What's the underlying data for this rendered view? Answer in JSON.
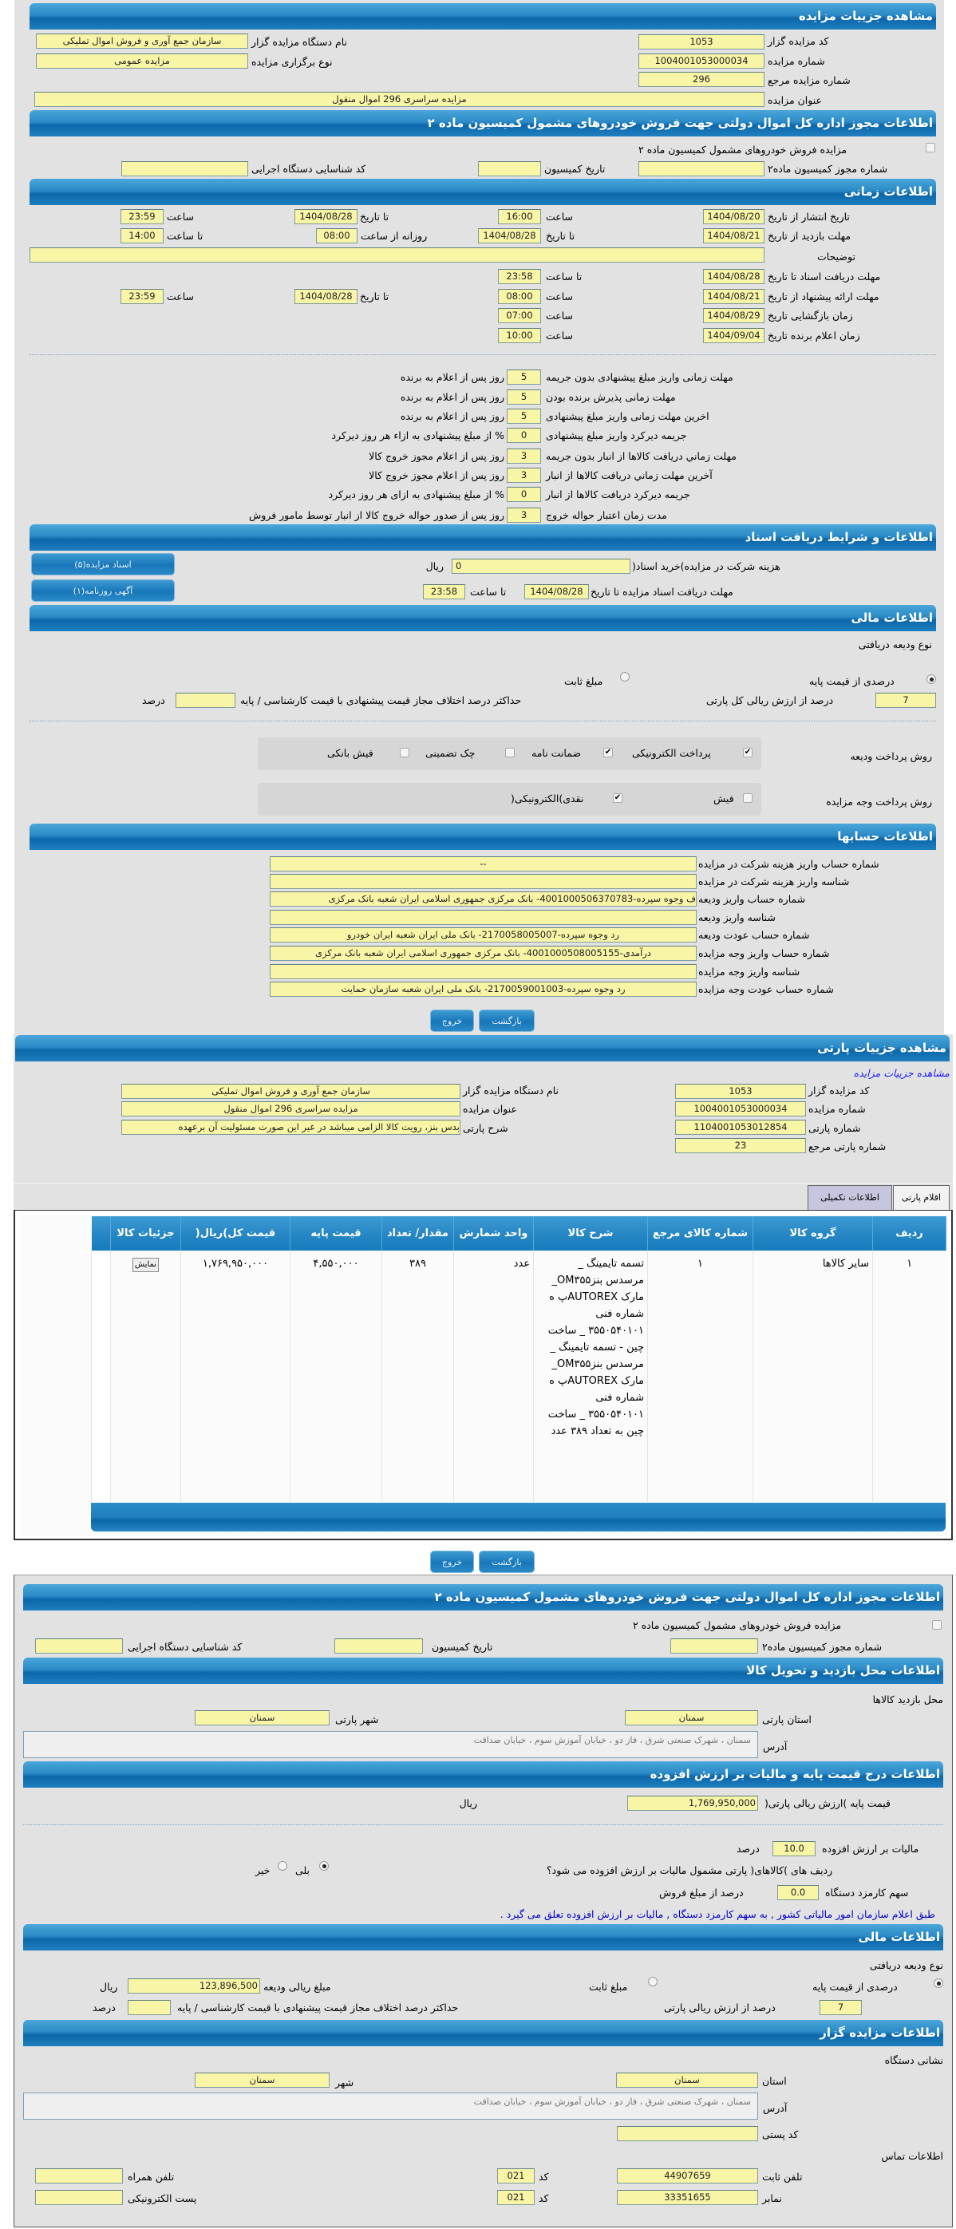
{
  "auction": {
    "header": "مشاهده جزیيات مزایده",
    "code_label": "کد مزایده گزار",
    "code": "1053",
    "number_label": "شماره مزایده",
    "number": "1004001053000034",
    "ref_label": "شماره مزایده مرجع",
    "ref": "296",
    "title_label": "عنوان مزایده",
    "title": "مزایده سراسری 296 اموال منقول",
    "org_label": "نام دستگاه مزایده گزار",
    "org": "سازمان جمع آوری و فروش اموال تملیکی",
    "type_label": "نوع برگزاری مزایده",
    "type": "مزایده عمومی"
  },
  "permit": {
    "header": "اطلاعات مجوز اداره کل اموال دولتی جهت فروش خودروهای مشمول کمیسیون ماده ۲",
    "checkbox_label": "مزایده فروش خودروهای مشمول کمیسیون ماده ۲",
    "checked": false,
    "permit_no_label": "شماره مجوز کمیسیون ماده۲",
    "permit_no": "",
    "date_label": "تاریخ کمیسیون",
    "date": "",
    "exec_code_label": "کد شناسایی دستگاه اجرایی",
    "exec_code": ""
  },
  "timing": {
    "header": "اطلاعات زمانی",
    "publish_label": "تاریخ انتشار  از تاریخ",
    "publish_from": "1404/08/20",
    "hour_label": "ساعت",
    "publish_from_time": "16:00",
    "to_date_label": "تا تاریخ",
    "publish_to": "1404/08/28",
    "publish_to_time": "23:59",
    "visit_label": "مهلت بازدید  از تاریخ",
    "visit_from": "1404/08/21",
    "visit_to_label": "تا تاریخ",
    "visit_to": "1404/08/28",
    "daily_label": "روزانه از ساعت",
    "daily_from": "08:00",
    "to_hour_label": "تا ساعت",
    "daily_to": "14:00",
    "desc_label": "توضیحات",
    "desc": "",
    "docs_label": "مهلت دریافت اسناد  تا تاریخ",
    "docs_to": "1404/08/28",
    "docs_to_time": "23:58",
    "offer_label": "مهلت ارائه پیشنهاد  از تاریخ",
    "offer_from": "1404/08/21",
    "offer_from_time": "08:00",
    "offer_to": "1404/08/28",
    "offer_to_time": "23:59",
    "open_label": "زمان بازگشایی   تاریخ",
    "open_date": "1404/08/29",
    "open_time": "07:00",
    "winner_label": "زمان اعلام برنده   تاریخ",
    "winner_date": "1404/09/04",
    "winner_time": "10:00"
  },
  "deadlines": [
    {
      "label": "مهلت زمانی واریز مبلغ پیشنهادی بدون جریمه",
      "value": "5",
      "suffix": "روز پس از اعلام به برنده"
    },
    {
      "label": "مهلت زمانی پذیرش برنده بودن",
      "value": "5",
      "suffix": "روز پس از اعلام به برنده"
    },
    {
      "label": "اخرین مهلت زمانی واریز مبلغ پیشنهادی",
      "value": "5",
      "suffix": "روز پس از اعلام به برنده"
    },
    {
      "label": "جریمه دیرکرد واریز مبلغ پیشنهادی",
      "value": "0",
      "suffix": "% از مبلغ پیشنهادی به ازاء هر روز دیرکرد"
    },
    {
      "label": "مهلت زماني دریافت کالاها از انبار بدون جریمه",
      "value": "3",
      "suffix": "روز پس از اعلام مجوز خروج کالا"
    },
    {
      "label": "آخرین مهلت زماني دریافت کالاها از انبار",
      "value": "3",
      "suffix": "روز پس از اعلام مجوز خروج کالا"
    },
    {
      "label": "جریمه دیرکرد دریافت کالاها از انبار",
      "value": "0",
      "suffix": "% از مبلغ پیشنهادی به ازای هر روز دیرکرد"
    },
    {
      "label": "مدت زمان اعتبار حواله خروج",
      "value": "3",
      "suffix": "روز پس از صدور حواله خروج کالا از انبار توسط مامور فروش"
    }
  ],
  "docs": {
    "header": "اطلاعات و شرایط دریافت اسناد",
    "cost_label": "هزینه شرکت در مزایده)خرید اسناد(",
    "cost": "0",
    "rial": "ریال",
    "deadline_label": "مهلت دریافت اسناد مزایده تا تاریخ",
    "deadline_date": "1404/08/28",
    "to_hour_label": "تا ساعت",
    "deadline_time": "23:58",
    "docs_button": "اسناد مزایده(۵)",
    "ad_button": "آگهی روزنامه(۱)"
  },
  "finance": {
    "header": "اطلاعات مالی",
    "deposit_type_label": "نوع ودیعه دریافتی",
    "percent_option": "درصدی از قیمت پایه",
    "fixed_option": "مبلغ ثابت",
    "selected": "percent",
    "percent": "7",
    "percent_suffix": "درصد از ارزش ریالی کل پارتی",
    "max_diff_label": "حداکثر درصد اختلاف مجاز قیمت پیشنهادی با قیمت کارشناسی / پایه",
    "max_diff": "",
    "percent_word": "درصد",
    "deposit_method_label": "روش پرداخت ودیعه",
    "deposit_methods": [
      {
        "label": "پرداخت الکترونیکی",
        "checked": true
      },
      {
        "label": "ضمانت نامه",
        "checked": true
      },
      {
        "label": "چک تضمینی",
        "checked": false
      },
      {
        "label": "فیش بانکی",
        "checked": false
      }
    ],
    "payment_method_label": "روش پرداخت وجه مزایده",
    "payment_methods": [
      {
        "label": "فیش",
        "checked": false
      },
      {
        "label": "نقدی)الکترونیکی(",
        "checked": true
      }
    ]
  },
  "accounts": {
    "header": "اطلاعات حسابها",
    "rows": [
      {
        "label": "شماره حساب واریز هزینه شرکت در مزایده",
        "value": "--"
      },
      {
        "label": "شناسه واریز هزینه شرکت در مزایده",
        "value": ""
      },
      {
        "label": "شماره حساب واریز ودیعه",
        "value": "ف وجوه سپرده-4001000506370783- بانک مرکزی جمهوری اسلامی ایران شعبه بانک مرکزی"
      },
      {
        "label": "شناسه واریز ودیعه",
        "value": ""
      },
      {
        "label": "شماره حساب عودت ودیعه",
        "value": "رد وجوه سپرده-2170058005007- بانک ملی ایران شعبه ایران خودرو"
      },
      {
        "label": "شماره حساب واریز وجه مزایده",
        "value": "درآمدی-4001000508005155- بانک مرکزی جمهوری اسلامی ایران شعبه بانک مرکزی"
      },
      {
        "label": "شناسه واریز وجه مزایده",
        "value": ""
      },
      {
        "label": "شماره حساب عودت وجه مزایده",
        "value": "رد وجوه سپرده-2170059001003- بانک ملی ایران شعبه سازمان حمایت"
      }
    ]
  },
  "buttons": {
    "back": "بازگشت",
    "exit": "خروج"
  },
  "party": {
    "header": "مشاهده جزیيات پارتی",
    "subtitle": "مشاهده جزیيات مزایده",
    "code_label": "کد مزایده گزار",
    "code": "1053",
    "number_label": "شماره مزایده",
    "number": "1004001053000034",
    "party_no_label": "شماره پارتی",
    "party_no": "1104001053012854",
    "party_ref_label": "شماره پارتی مرجع",
    "party_ref": "23",
    "org_label": "نام دستگاه مزایده گزار",
    "org": "سازمان جمع آوری و فروش اموال تملیکی",
    "title_label": "عنوان مزایده",
    "title": "مزایده سراسری 296 اموال منقول",
    "desc_label": "شرح پارتی",
    "desc": "بدس بنز، رویت کالا الزامی میباشد در غیر این صورت مسئولیت آن برعهده",
    "tabs": [
      "اقلام پارتی",
      "اطلاعات تکمیلی"
    ],
    "columns": [
      "ردیف",
      "گروه کالا",
      "شماره کالای مرجع",
      "شرح کالا",
      "واحد شمارش",
      "مقدار/ تعداد",
      "قیمت پایه",
      "قیمت کل)ریال(",
      "جزئیات کالا"
    ],
    "rows": [
      {
        "row": "۱",
        "group": "سایر کالاها",
        "ref": "۱",
        "desc": "تسمه تایمینگ _ مرسدس بنزOM۳۵۵_ مارک AUTOREXپ ه شماره فنی ۳۵۵۰۵۴۰۱۰۱ _ ساخت چین - تسمه تایمینگ _ مرسدس بنزOM۳۵۵_ مارک AUTOREXپ ه شماره فنی ۳۵۵۰۵۴۰۱۰۱ _ ساخت چین به تعداد ۳۸۹ عدد",
        "unit": "عدد",
        "qty": "۳۸۹",
        "base": "۴,۵۵۰,۰۰۰",
        "total": "۱,۷۶۹,۹۵۰,۰۰۰",
        "details": "نمایش"
      }
    ]
  },
  "permit2": {
    "header": "اطلاعات مجوز اداره کل اموال دولتی جهت فروش خودروهای مشمول کمیسیون ماده ۲",
    "checkbox_label": "مزایده فروش خودروهای مشمول کمیسیون ماده ۲",
    "permit_no_label": "شماره مجوز کمیسیون ماده۲",
    "date_label": "تاریخ کمیسیون",
    "exec_code_label": "کد شناسایی دستگاه اجرایی"
  },
  "delivery": {
    "header": "اطلاعات محل بازدید و تحویل کالا",
    "place_label": "محل بازدید کالاها",
    "province_label": "استان پارتی",
    "province": "سمنان",
    "city_label": "شهر پارتی",
    "city": "سمنان",
    "address_label": "آدرس",
    "address": "سمنان ، شهرک صنعتی شرق ، فاز دو ، خیابان آموزش سوم ، خیابان صداقت"
  },
  "vat": {
    "header": "اطلاعات درج قیمت پایه و مالیات بر ارزش افزوده",
    "base_label": "قیمت پایه )ارزش ریالی پارتی(",
    "base": "1,769,950,000",
    "rial": "ریال",
    "vat_label": "مالیات بر ارزش افزوده",
    "vat": "10.0",
    "percent_word": "درصد",
    "subject_label": "ردیف های )کالاهای( پارتی مشمول مالیات بر ارزش افزوده می شود؟",
    "yes": "بلی",
    "no": "خیر",
    "subject": "yes",
    "fee_label": "سهم کارمزد دستگاه",
    "fee": "0.0",
    "fee_suffix": "درصد از مبلغ فروش",
    "note": "طبق اعلام سازمان امور مالیاتی کشور , به سهم کارمزد دستگاه , مالیات بر ارزش افزوده تعلق می گیرد ."
  },
  "finance2": {
    "header": "اطلاعات مالی",
    "deposit_type_label": "نوع ودیعه دریافتی",
    "percent_option": "درصدی از قیمت پایه",
    "fixed_option": "مبلغ ثابت",
    "amount_label": "مبلغ ریالی ودیعه",
    "amount": "123,896,500",
    "rial": "ریال",
    "percent": "7",
    "percent_suffix": "درصد از ارزش ریالی پارتی",
    "max_diff_label": "حداکثر درصد اختلاف مجاز قیمت پیشنهادی با قیمت کارشناسی / پایه",
    "percent_word": "درصد"
  },
  "auctioneer": {
    "header": "اطلاعات مزایده گزار",
    "address_title": "نشانی دستگاه",
    "province_label": "استان",
    "province": "سمنان",
    "city_label": "شهر",
    "city": "سمنان",
    "address_label": "آدرس",
    "address": "سمنان ، شهرک صنعتی شرق ، فاز دو ، خیابان آموزش سوم ، خیابان صداقت",
    "postal_label": "کد پستی",
    "postal": "",
    "contact_title": "اطلاعات تماس",
    "phone_label": "تلفن ثابت",
    "phone": "44907659",
    "code_label": "کد",
    "phone_code": "021",
    "mobile_label": "تلفن همراه",
    "mobile": "",
    "fax_label": "نمابر",
    "fax": "33351655",
    "fax_code": "021",
    "email_label": "پست الکترونیکی",
    "email": ""
  },
  "colors": {
    "header_blue": "#1e7fbf",
    "field_yellow": "#f8f5a6",
    "panel_gray": "#e2e2e2",
    "note_blue": "#0000cc"
  }
}
